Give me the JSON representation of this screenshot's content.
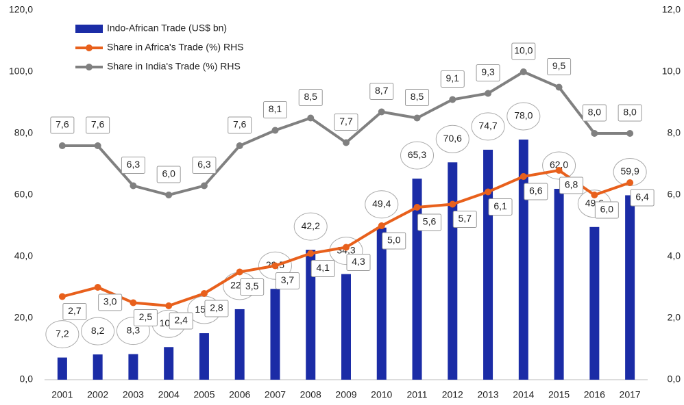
{
  "chart_data": {
    "type": "bar",
    "categories": [
      "2001",
      "2002",
      "2003",
      "2004",
      "2005",
      "2006",
      "2007",
      "2008",
      "2009",
      "2010",
      "2011",
      "2012",
      "2013",
      "2014",
      "2015",
      "2016",
      "2017"
    ],
    "series": [
      {
        "name": "Indo-African Trade (US$ bn)",
        "type": "bar",
        "color": "#1b2ca6",
        "values": [
          7.2,
          8.2,
          8.3,
          10.6,
          15.1,
          22.9,
          29.5,
          42.2,
          34.3,
          49.4,
          65.3,
          70.6,
          74.7,
          78.0,
          62.0,
          49.6,
          59.9
        ],
        "value_labels": [
          "7,2",
          "8,2",
          "8,3",
          "10,6",
          "15,1",
          "22,9",
          "29,5",
          "42,2",
          "34,3",
          "49,4",
          "65,3",
          "70,6",
          "74,7",
          "78,0",
          "62,0",
          "49,6",
          "59,9"
        ]
      },
      {
        "name": "Share in Africa's Trade (%) RHS",
        "type": "line",
        "axis": "y2",
        "color": "#e8601c",
        "values": [
          2.7,
          3.0,
          2.5,
          2.4,
          2.8,
          3.5,
          3.7,
          4.1,
          4.3,
          5.0,
          5.6,
          5.7,
          6.1,
          6.6,
          6.8,
          6.0,
          6.4
        ],
        "value_labels": [
          "2,7",
          "3,0",
          "2,5",
          "2,4",
          "2,8",
          "3,5",
          "3,7",
          "4,1",
          "4,3",
          "5,0",
          "5,6",
          "5,7",
          "6,1",
          "6,6",
          "6,8",
          "6,0",
          "6,4"
        ]
      },
      {
        "name": "Share in India's Trade (%) RHS",
        "type": "line",
        "axis": "y2",
        "color": "#808080",
        "values": [
          7.6,
          7.6,
          6.3,
          6.0,
          6.3,
          7.6,
          8.1,
          8.5,
          7.7,
          8.7,
          8.5,
          9.1,
          9.3,
          10.0,
          9.5,
          8.0,
          8.0
        ],
        "value_labels": [
          "7,6",
          "7,6",
          "6,3",
          "6,0",
          "6,3",
          "7,6",
          "8,1",
          "8,5",
          "7,7",
          "8,7",
          "8,5",
          "9,1",
          "9,3",
          "10,0",
          "9,5",
          "8,0",
          "8,0"
        ]
      }
    ],
    "ylim": [
      0,
      120
    ],
    "yticks": [
      {
        "value": 0,
        "label": "0,0"
      },
      {
        "value": 20,
        "label": "20,0"
      },
      {
        "value": 40,
        "label": "40,0"
      },
      {
        "value": 60,
        "label": "60,0"
      },
      {
        "value": 80,
        "label": "80,0"
      },
      {
        "value": 100,
        "label": "100,0"
      },
      {
        "value": 120,
        "label": "120,0"
      }
    ],
    "y2lim": [
      0,
      12
    ],
    "y2ticks": [
      {
        "value": 0,
        "label": "0,0"
      },
      {
        "value": 2,
        "label": "2,0"
      },
      {
        "value": 4,
        "label": "4,0"
      },
      {
        "value": 6,
        "label": "6,0"
      },
      {
        "value": 8,
        "label": "8,0"
      },
      {
        "value": 10,
        "label": "10,0"
      },
      {
        "value": 12,
        "label": "12,0"
      }
    ],
    "legend": "upper left"
  }
}
